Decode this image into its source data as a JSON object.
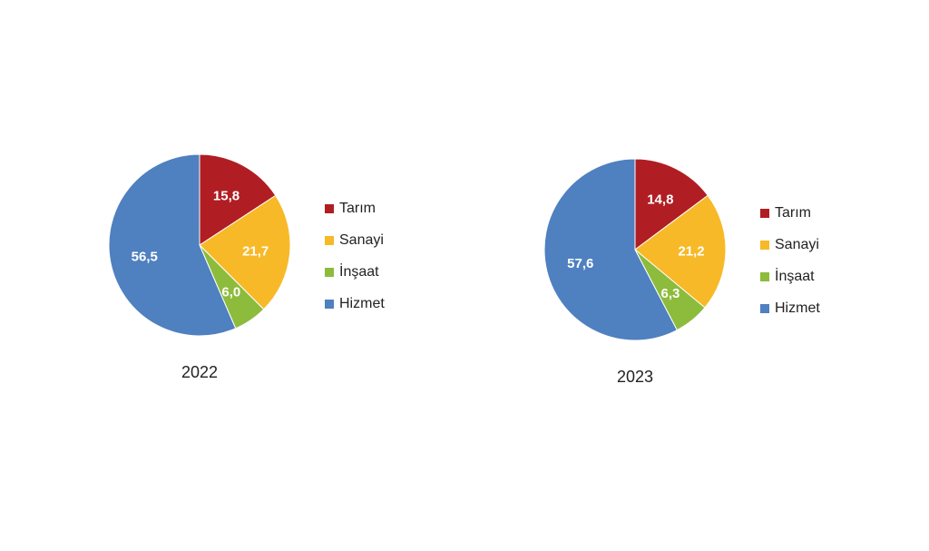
{
  "chart_data": [
    {
      "type": "pie",
      "year": "2022",
      "categories": [
        "Tarım",
        "Sanayi",
        "İnşaat",
        "Hizmet"
      ],
      "labels": [
        "15,8",
        "21,7",
        "6,0",
        "56,5"
      ],
      "values": [
        15.8,
        21.7,
        6.0,
        56.5
      ],
      "colors": [
        "#B01E23",
        "#F7B927",
        "#8DBB3C",
        "#4F80C0"
      ],
      "legend_position": "right"
    },
    {
      "type": "pie",
      "year": "2023",
      "categories": [
        "Tarım",
        "Sanayi",
        "İnşaat",
        "Hizmet"
      ],
      "labels": [
        "14,8",
        "21,2",
        "6,3",
        "57,6"
      ],
      "values": [
        14.8,
        21.2,
        6.3,
        57.6
      ],
      "colors": [
        "#B01E23",
        "#F7B927",
        "#8DBB3C",
        "#4F80C0"
      ],
      "legend_position": "right"
    }
  ]
}
